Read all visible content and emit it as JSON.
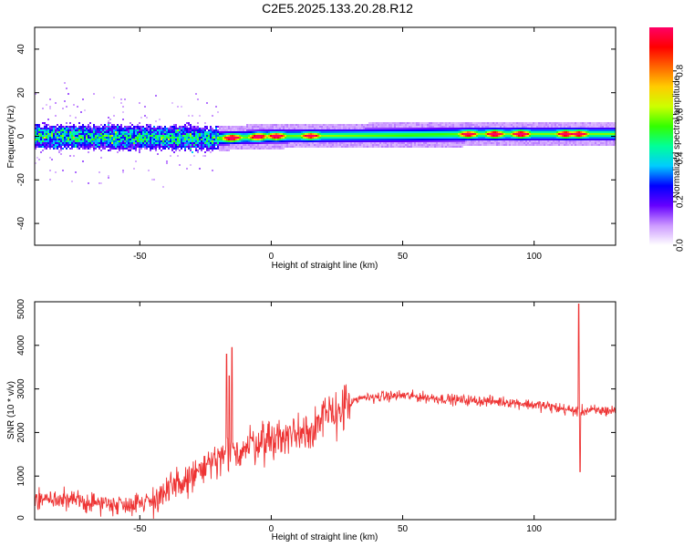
{
  "page": {
    "title": "C2E5.2025.133.20.28.R12"
  },
  "chart_data": [
    {
      "type": "heatmap",
      "xlabel": "Height of straight line (km)",
      "ylabel": "Frequency (Hz)",
      "xlim": [
        -90,
        131
      ],
      "ylim": [
        -50,
        50
      ],
      "x_ticks": [
        -50,
        0,
        50,
        100
      ],
      "y_ticks": [
        -40,
        -20,
        0,
        20,
        40
      ],
      "colorbar": {
        "label": "Normalized spectral amplitude",
        "range": [
          0,
          1
        ],
        "ticks": [
          0.0,
          0.2,
          0.4,
          0.6,
          0.8
        ],
        "colormap": [
          "#ffffff",
          "#cc99ff",
          "#6600ff",
          "#0000ff",
          "#00ccff",
          "#00ff99",
          "#33ff00",
          "#ccff00",
          "#ffcc00",
          "#ff6600",
          "#ff0000",
          "#ff0066"
        ]
      },
      "ridge": {
        "center_freq_hz": [
          {
            "x": -90,
            "f": 0
          },
          {
            "x": -20,
            "f": -1
          },
          {
            "x": 0,
            "f": 0
          },
          {
            "x": 50,
            "f": 0.5
          },
          {
            "x": 80,
            "f": 1
          },
          {
            "x": 100,
            "f": 1
          },
          {
            "x": 131,
            "f": 1
          }
        ],
        "peaks": [
          {
            "x": -15,
            "amp": 0.95
          },
          {
            "x": -5,
            "amp": 0.9
          },
          {
            "x": 2,
            "amp": 0.85
          },
          {
            "x": 15,
            "amp": 0.75
          },
          {
            "x": 75,
            "amp": 0.8
          },
          {
            "x": 85,
            "amp": 0.95
          },
          {
            "x": 95,
            "amp": 0.95
          },
          {
            "x": 112,
            "amp": 0.9
          },
          {
            "x": 117,
            "amp": 0.85
          }
        ]
      }
    },
    {
      "type": "line",
      "xlabel": "Height of straight line (km)",
      "ylabel": "SNR (10 * v/v)",
      "xlim": [
        -90,
        131
      ],
      "ylim": [
        0,
        5000
      ],
      "x_ticks": [
        -50,
        0,
        50,
        100
      ],
      "y_ticks": [
        0,
        1000,
        2000,
        3000,
        4000,
        5000
      ],
      "color": "#ee3333",
      "series": [
        {
          "trend": [
            {
              "x": -90,
              "y": 500
            },
            {
              "x": -70,
              "y": 400
            },
            {
              "x": -55,
              "y": 350
            },
            {
              "x": -45,
              "y": 450
            },
            {
              "x": -35,
              "y": 800
            },
            {
              "x": -25,
              "y": 1200
            },
            {
              "x": -15,
              "y": 1500
            },
            {
              "x": -5,
              "y": 1800
            },
            {
              "x": 5,
              "y": 1900
            },
            {
              "x": 15,
              "y": 2100
            },
            {
              "x": 25,
              "y": 2500
            },
            {
              "x": 35,
              "y": 2800
            },
            {
              "x": 50,
              "y": 2850
            },
            {
              "x": 70,
              "y": 2750
            },
            {
              "x": 90,
              "y": 2700
            },
            {
              "x": 105,
              "y": 2600
            },
            {
              "x": 115,
              "y": 2500
            },
            {
              "x": 131,
              "y": 2500
            }
          ],
          "spikes": [
            {
              "x": -17,
              "y": 3800
            },
            {
              "x": -16,
              "y": 3300
            },
            {
              "x": -15,
              "y": 3950
            },
            {
              "x": 117,
              "y": 4950
            },
            {
              "x": 117.5,
              "y": 1100
            }
          ]
        }
      ]
    }
  ]
}
